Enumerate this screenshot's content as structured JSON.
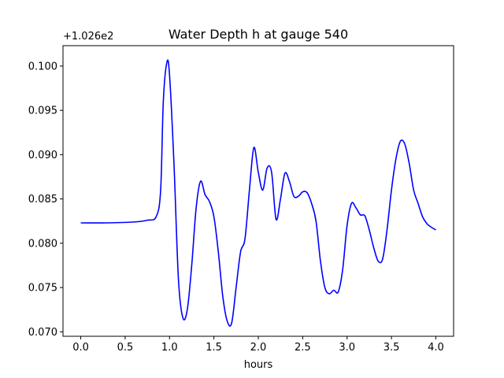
{
  "chart_data": {
    "type": "line",
    "title": "Water Depth h at gauge 540",
    "xlabel": "hours",
    "ylabel": "",
    "offset_label": "+1.026e2",
    "xlim": [
      -0.2,
      4.2
    ],
    "ylim": [
      0.0695,
      0.1023
    ],
    "x_ticks": [
      {
        "value": 0.0,
        "label": "0.0"
      },
      {
        "value": 0.5,
        "label": "0.5"
      },
      {
        "value": 1.0,
        "label": "1.0"
      },
      {
        "value": 1.5,
        "label": "1.5"
      },
      {
        "value": 2.0,
        "label": "2.0"
      },
      {
        "value": 2.5,
        "label": "2.5"
      },
      {
        "value": 3.0,
        "label": "3.0"
      },
      {
        "value": 3.5,
        "label": "3.5"
      },
      {
        "value": 4.0,
        "label": "4.0"
      }
    ],
    "y_ticks": [
      {
        "value": 0.07,
        "label": "0.070"
      },
      {
        "value": 0.075,
        "label": "0.075"
      },
      {
        "value": 0.08,
        "label": "0.080"
      },
      {
        "value": 0.085,
        "label": "0.085"
      },
      {
        "value": 0.09,
        "label": "0.090"
      },
      {
        "value": 0.095,
        "label": "0.095"
      },
      {
        "value": 0.1,
        "label": "0.100"
      }
    ],
    "grid": false,
    "series": [
      {
        "color": "#0000ff",
        "points": [
          [
            0.0,
            0.0823
          ],
          [
            0.3,
            0.0823
          ],
          [
            0.6,
            0.0824
          ],
          [
            0.75,
            0.0826
          ],
          [
            0.85,
            0.083
          ],
          [
            0.9,
            0.086
          ],
          [
            0.93,
            0.096
          ],
          [
            0.97,
            0.1004
          ],
          [
            1.0,
            0.099
          ],
          [
            1.05,
            0.089
          ],
          [
            1.1,
            0.076
          ],
          [
            1.15,
            0.0716
          ],
          [
            1.2,
            0.0725
          ],
          [
            1.25,
            0.0775
          ],
          [
            1.3,
            0.084
          ],
          [
            1.35,
            0.087
          ],
          [
            1.4,
            0.0855
          ],
          [
            1.45,
            0.0847
          ],
          [
            1.5,
            0.083
          ],
          [
            1.55,
            0.079
          ],
          [
            1.6,
            0.074
          ],
          [
            1.65,
            0.0712
          ],
          [
            1.7,
            0.071
          ],
          [
            1.75,
            0.075
          ],
          [
            1.8,
            0.079
          ],
          [
            1.85,
            0.0805
          ],
          [
            1.9,
            0.086
          ],
          [
            1.95,
            0.0908
          ],
          [
            2.0,
            0.088
          ],
          [
            2.05,
            0.086
          ],
          [
            2.1,
            0.0885
          ],
          [
            2.15,
            0.088
          ],
          [
            2.2,
            0.0827
          ],
          [
            2.25,
            0.085
          ],
          [
            2.3,
            0.0879
          ],
          [
            2.35,
            0.087
          ],
          [
            2.4,
            0.0853
          ],
          [
            2.45,
            0.0853
          ],
          [
            2.5,
            0.0858
          ],
          [
            2.55,
            0.0857
          ],
          [
            2.6,
            0.0845
          ],
          [
            2.65,
            0.0825
          ],
          [
            2.7,
            0.078
          ],
          [
            2.75,
            0.075
          ],
          [
            2.8,
            0.0743
          ],
          [
            2.85,
            0.0747
          ],
          [
            2.9,
            0.0745
          ],
          [
            2.95,
            0.077
          ],
          [
            3.0,
            0.082
          ],
          [
            3.05,
            0.0845
          ],
          [
            3.1,
            0.084
          ],
          [
            3.15,
            0.0832
          ],
          [
            3.2,
            0.0831
          ],
          [
            3.25,
            0.0815
          ],
          [
            3.3,
            0.0795
          ],
          [
            3.35,
            0.078
          ],
          [
            3.4,
            0.0782
          ],
          [
            3.45,
            0.0815
          ],
          [
            3.5,
            0.086
          ],
          [
            3.55,
            0.0895
          ],
          [
            3.6,
            0.0915
          ],
          [
            3.65,
            0.0912
          ],
          [
            3.7,
            0.089
          ],
          [
            3.75,
            0.086
          ],
          [
            3.8,
            0.0845
          ],
          [
            3.85,
            0.083
          ],
          [
            3.9,
            0.0822
          ],
          [
            3.95,
            0.0818
          ],
          [
            4.0,
            0.0815
          ]
        ]
      }
    ]
  }
}
